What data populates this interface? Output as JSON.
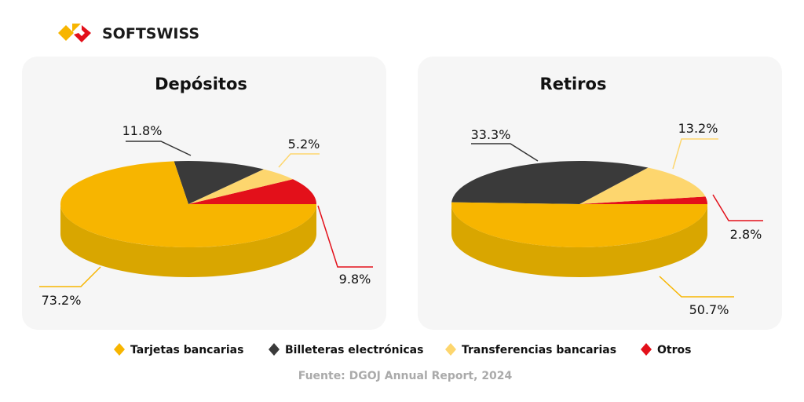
{
  "brand": {
    "name": "SOFTSWISS",
    "logo_colors": [
      "#f7b500",
      "#e3101a"
    ]
  },
  "source": "Fuente: DGOJ Annual Report, 2024",
  "chart_data": [
    {
      "type": "pie",
      "title": "Depósitos",
      "categories": [
        "Tarjetas bancarias",
        "Billeteras electrónicas",
        "Transferencias bancarias",
        "Otros"
      ],
      "values": [
        73.2,
        11.8,
        5.2,
        9.8
      ],
      "labels": [
        "73.2%",
        "11.8%",
        "5.2%",
        "9.8%"
      ],
      "style": "3d"
    },
    {
      "type": "pie",
      "title": "Retiros",
      "categories": [
        "Tarjetas bancarias",
        "Billeteras electrónicas",
        "Transferencias bancarias",
        "Otros"
      ],
      "values": [
        50.7,
        33.3,
        13.2,
        2.8
      ],
      "labels": [
        "50.7%",
        "33.3%",
        "13.2%",
        "2.8%"
      ],
      "style": "3d"
    }
  ],
  "legend": {
    "placement": "bottom",
    "items": [
      {
        "label": "Tarjetas bancarias",
        "color": "#f7b500"
      },
      {
        "label": "Billeteras electrónicas",
        "color": "#3a3a3a"
      },
      {
        "label": "Transferencias bancarias",
        "color": "#fdd66e"
      },
      {
        "label": "Otros",
        "color": "#e3101a"
      }
    ]
  }
}
